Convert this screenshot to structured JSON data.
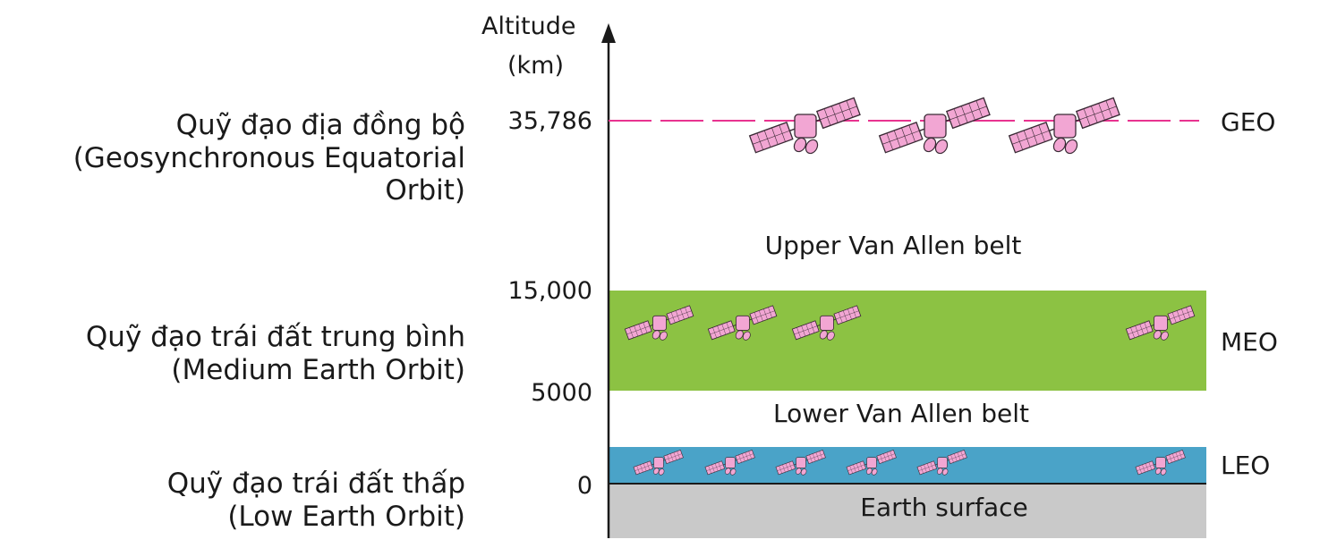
{
  "axis": {
    "title_line1": "Altitude",
    "title_line2": "(km)",
    "ticks": {
      "geo": "35,786",
      "meo_top": "15,000",
      "meo_bottom": "5000",
      "zero": "0"
    }
  },
  "orbits": {
    "geo": {
      "code": "GEO",
      "name_vi": "Quỹ đạo địa đồng bộ",
      "name_en_line1": "(Geosynchronous Equatorial",
      "name_en_line2": "Orbit)",
      "line_color": "#e8338f"
    },
    "meo": {
      "code": "MEO",
      "name_vi": "Quỹ đạo trái đất trung bình",
      "name_en": "(Medium Earth Orbit)",
      "band_color": "#8cc243"
    },
    "leo": {
      "code": "LEO",
      "name_vi": "Quỹ đạo trái đất thấp",
      "name_en": "(Low Earth Orbit)",
      "band_color": "#4aa3c8"
    }
  },
  "regions": {
    "upper_belt": "Upper Van Allen belt",
    "lower_belt": "Lower Van Allen belt",
    "earth": "Earth surface",
    "earth_color": "#c9c9c9"
  },
  "satellite_colors": {
    "body": "#f2a6d3",
    "outline": "#3a2a35"
  }
}
